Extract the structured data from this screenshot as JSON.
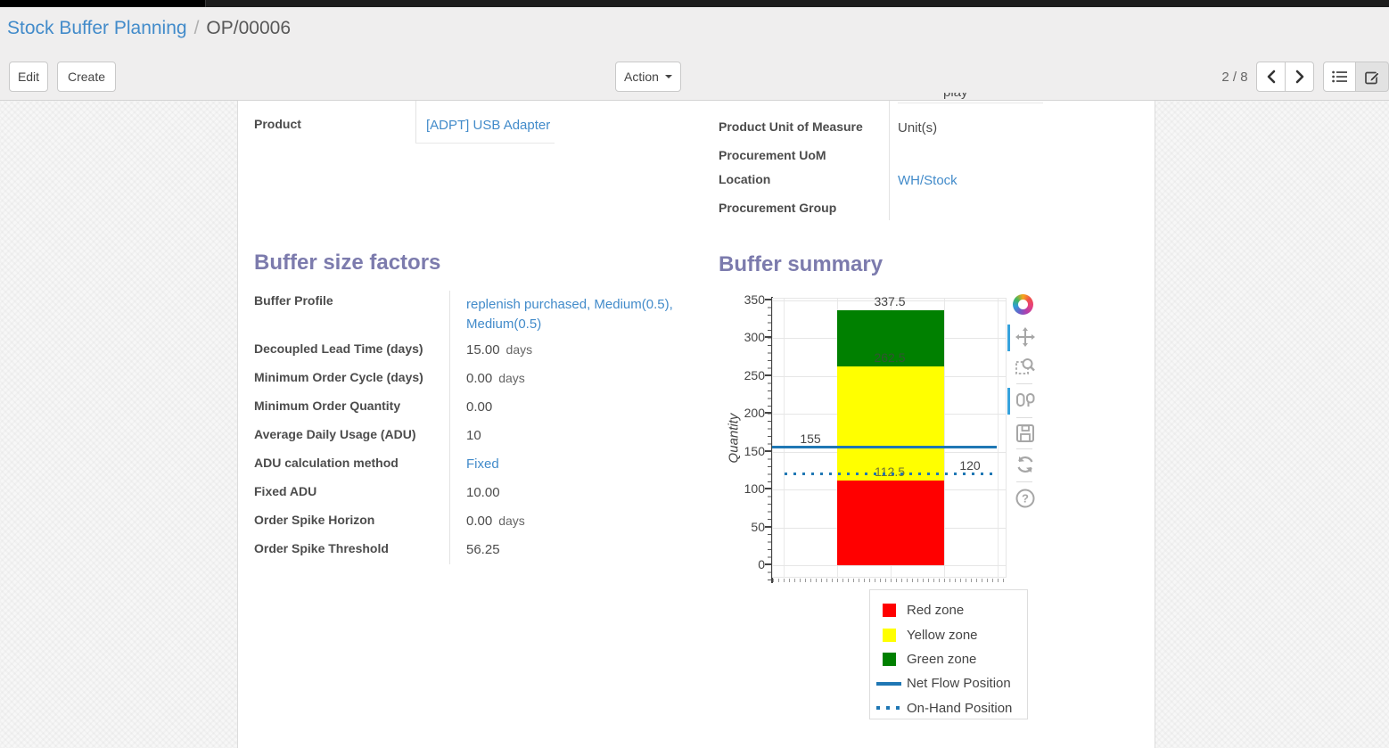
{
  "breadcrumb": {
    "section": "Stock Buffer Planning",
    "separator": "/",
    "record": "OP/00006"
  },
  "toolbar": {
    "edit_label": "Edit",
    "create_label": "Create",
    "action_label": "Action",
    "pager_value": "2 / 8"
  },
  "form": {
    "clipped_row_fragment": "play",
    "product": {
      "label": "Product",
      "value": "[ADPT] USB Adapter"
    },
    "right_fields": [
      {
        "label": "Product Unit of Measure",
        "value": "Unit(s)"
      },
      {
        "label": "Procurement UoM",
        "value": ""
      },
      {
        "label": "Location",
        "value": "WH/Stock"
      },
      {
        "label": "Procurement Group",
        "value": ""
      }
    ]
  },
  "buffer_factors": {
    "title": "Buffer size factors",
    "rows": [
      {
        "label": "Buffer Profile",
        "value": "replenish purchased, Medium(0.5), Medium(0.5)",
        "unit": ""
      },
      {
        "label": "Decoupled Lead Time (days)",
        "value": "15.00",
        "unit": "days"
      },
      {
        "label": "Minimum Order Cycle (days)",
        "value": "0.00",
        "unit": "days"
      },
      {
        "label": "Minimum Order Quantity",
        "value": "0.00",
        "unit": ""
      },
      {
        "label": "Average Daily Usage (ADU)",
        "value": "10",
        "unit": ""
      },
      {
        "label": "ADU calculation method",
        "value": "Fixed",
        "unit": ""
      },
      {
        "label": "Fixed ADU",
        "value": "10.00",
        "unit": ""
      },
      {
        "label": "Order Spike Horizon",
        "value": "0.00",
        "unit": "days"
      },
      {
        "label": "Order Spike Threshold",
        "value": "56.25",
        "unit": ""
      }
    ]
  },
  "buffer_summary": {
    "title": "Buffer summary"
  },
  "chart_data": {
    "type": "bar",
    "title": "Buffer summary",
    "xlabel": "",
    "ylabel": "Quantity",
    "yticks": [
      0,
      50,
      100,
      150,
      200,
      250,
      300,
      350
    ],
    "ylim": [
      -17,
      351
    ],
    "grid": true,
    "series": [
      {
        "name": "Red zone",
        "color": "#ff0000",
        "from": 0,
        "to": 112.5,
        "label": "112.5"
      },
      {
        "name": "Yellow zone",
        "color": "#ffff00",
        "from": 112.5,
        "to": 262.5,
        "label": "262.5"
      },
      {
        "name": "Green zone",
        "color": "#008000",
        "from": 262.5,
        "to": 337.5,
        "label": "337.5"
      }
    ],
    "lines": [
      {
        "name": "Net Flow Position",
        "value": 155,
        "label": "155",
        "style": "solid",
        "color": "#1f77b4",
        "label_side": "left"
      },
      {
        "name": "On-Hand Position",
        "value": 120,
        "label": "120",
        "style": "dotted",
        "color": "#1f77b4",
        "label_side": "right"
      }
    ],
    "legend_position": "bottom-right",
    "legend": [
      {
        "name": "Red zone",
        "swatch": "square",
        "color": "#ff0000"
      },
      {
        "name": "Yellow zone",
        "swatch": "square",
        "color": "#ffff00"
      },
      {
        "name": "Green zone",
        "swatch": "square",
        "color": "#008000"
      },
      {
        "name": "Net Flow Position",
        "swatch": "line",
        "color": "#1f77b4"
      },
      {
        "name": "On-Hand Position",
        "swatch": "dotted-line",
        "color": "#1f77b4"
      }
    ]
  },
  "modebar": {
    "icons": [
      "plotly-logo",
      "pan",
      "box-zoom",
      "compare-hover",
      "save",
      "reset-axes",
      "help"
    ],
    "active": [
      "pan",
      "compare-hover"
    ]
  },
  "colors": {
    "heading": "#7c7bad",
    "link": "#428bca",
    "plot_blue": "#1f77b4",
    "modebar_active": "#36a2dc"
  }
}
